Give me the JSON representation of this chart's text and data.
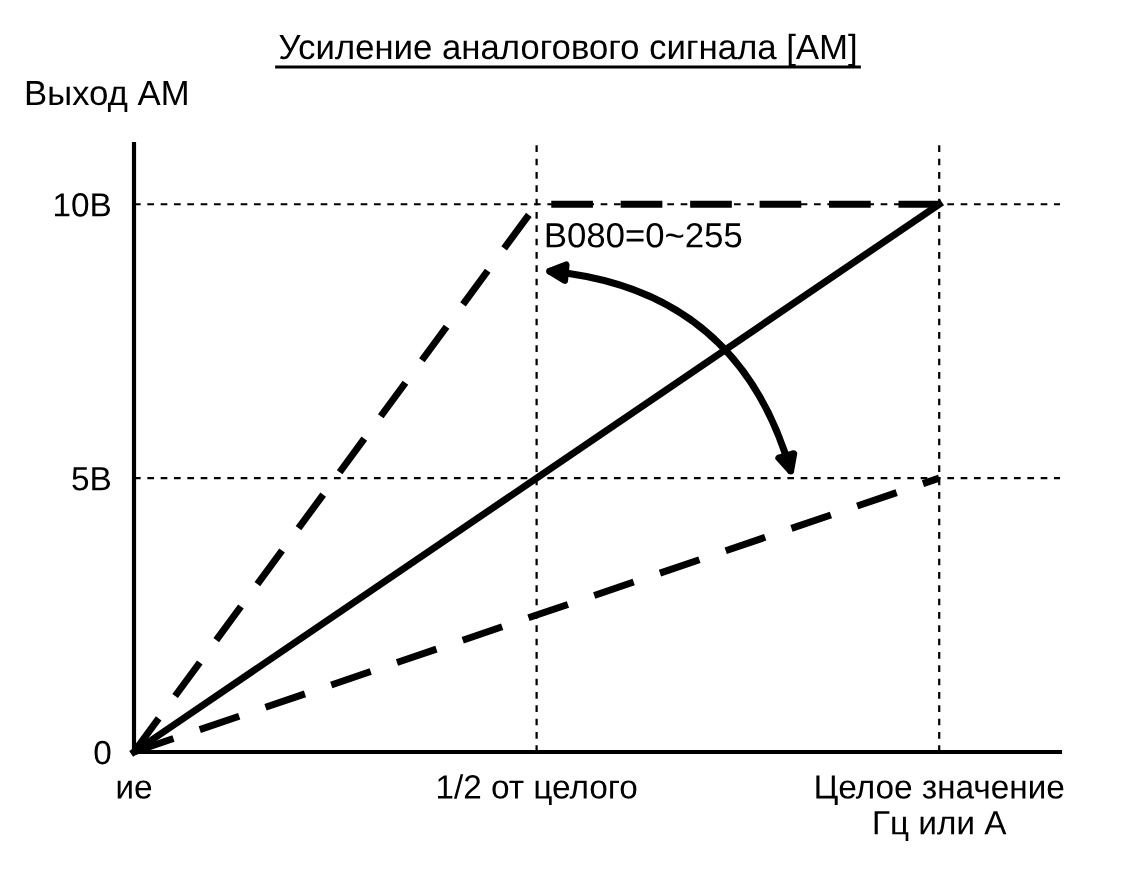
{
  "chart_data": {
    "type": "line",
    "title": "Усиление аналогового сигнала [АМ]",
    "ylabel": "Выход АМ",
    "categories": [
      "ие",
      "1/2 от целого",
      "Целое значение\nГц или А"
    ],
    "series": [
      {
        "color": "#000000",
        "values": [
          0,
          5,
          10
        ],
        "line_style": "solid"
      },
      {
        "color": "#000000",
        "values": [
          0,
          10,
          10
        ],
        "line_style": "dashed"
      },
      {
        "color": "#000000",
        "values": [
          0,
          2.5,
          5
        ],
        "line_style": "dashed"
      }
    ],
    "ylim": [
      0,
      11.1
    ],
    "yticks": [
      {
        "value": 0,
        "label": "0"
      },
      {
        "value": 5,
        "label": "5В"
      },
      {
        "value": 10,
        "label": "10В"
      }
    ],
    "grid": true,
    "marker": "none",
    "annotations": [
      "B080=0~255"
    ]
  }
}
